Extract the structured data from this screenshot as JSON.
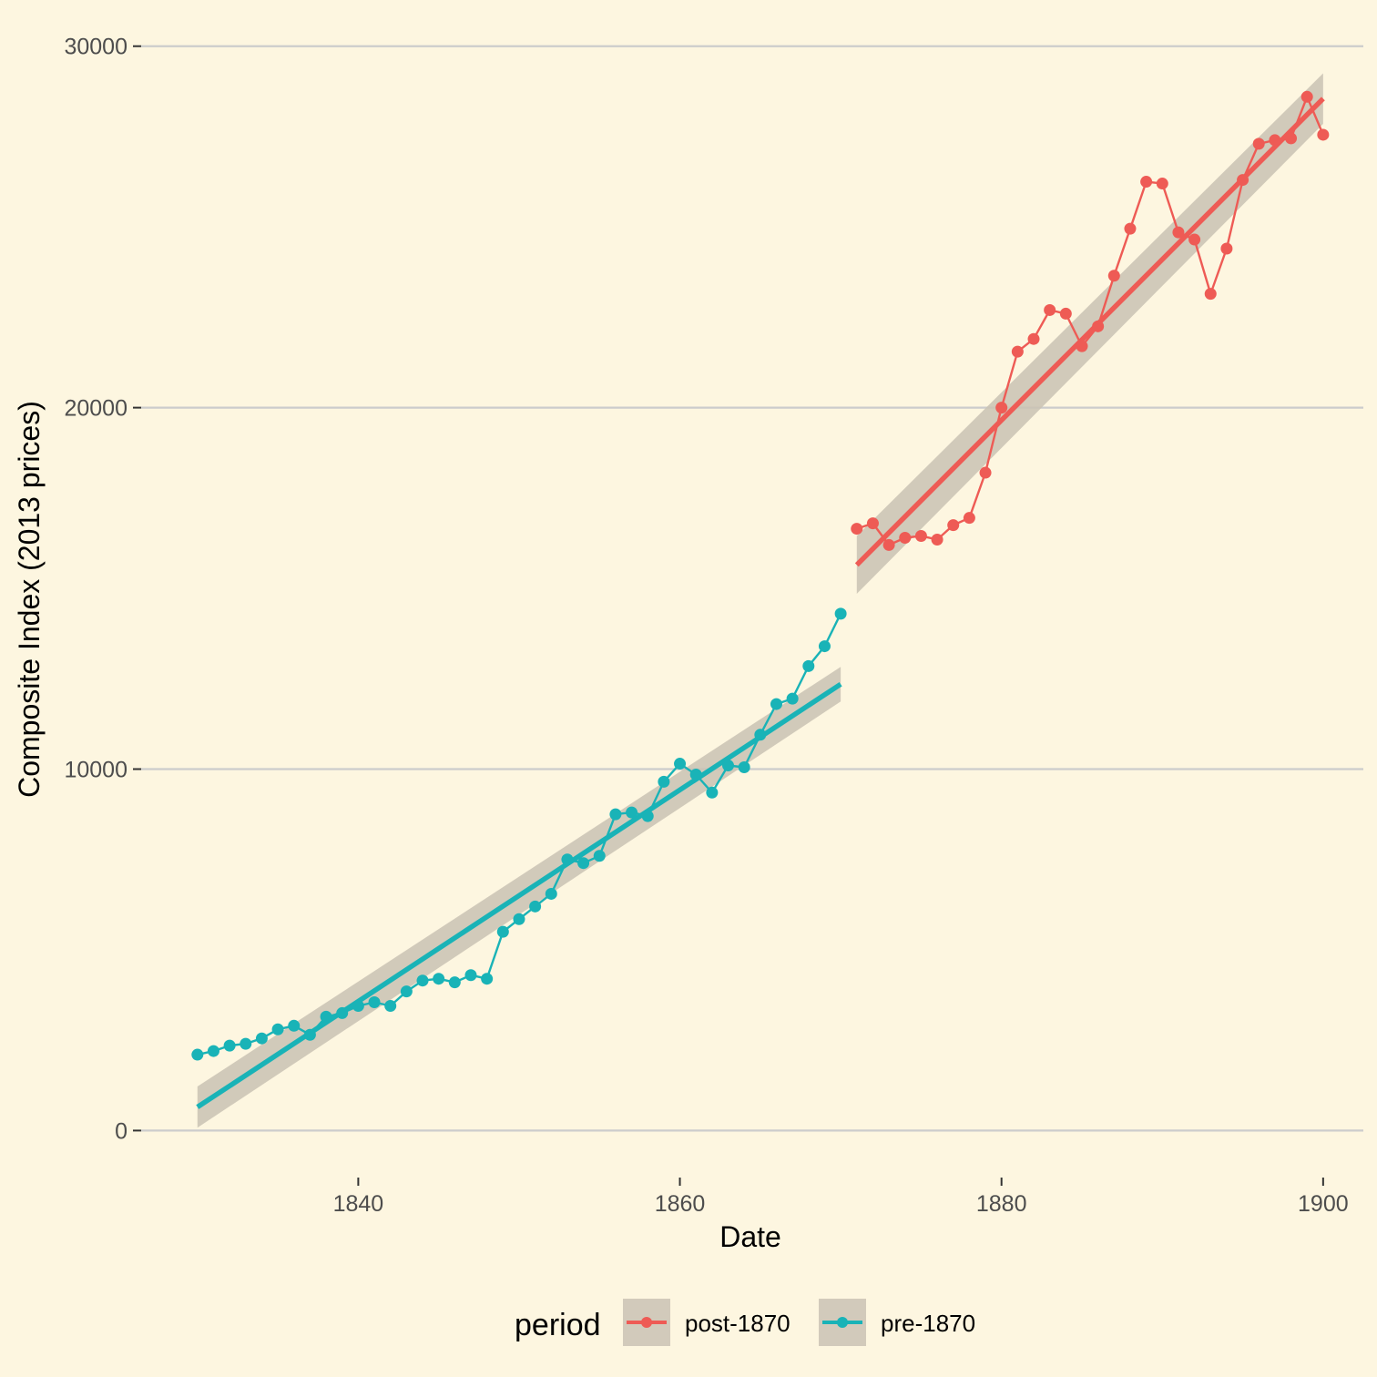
{
  "chart_data": {
    "type": "line",
    "title": "",
    "xlabel": "Date",
    "ylabel": "Composite Index (2013 prices)",
    "xlim": [
      1826.5,
      1902.5
    ],
    "ylim": [
      -1300,
      30900
    ],
    "x_ticks": [
      1840,
      1860,
      1880,
      1900
    ],
    "y_ticks": [
      0,
      10000,
      20000,
      30000
    ],
    "x_tick_labels": [
      "1840",
      "1860",
      "1880",
      "1900"
    ],
    "y_tick_labels": [
      "0",
      "10000",
      "20000",
      "30000"
    ],
    "grid": "horizontal major",
    "background": "#fdf6e0",
    "legend": {
      "title": "period",
      "position": "bottom",
      "entries": [
        "post-1870",
        "pre-1870"
      ]
    },
    "series": [
      {
        "name": "pre-1870",
        "color": "#19b3b7",
        "x": [
          1830,
          1831,
          1832,
          1833,
          1834,
          1835,
          1836,
          1837,
          1838,
          1839,
          1840,
          1841,
          1842,
          1843,
          1844,
          1845,
          1846,
          1847,
          1848,
          1849,
          1850,
          1851,
          1852,
          1853,
          1854,
          1855,
          1856,
          1857,
          1858,
          1859,
          1860,
          1861,
          1862,
          1863,
          1864,
          1865,
          1866,
          1867,
          1868,
          1869,
          1870
        ],
        "y": [
          2100,
          2200,
          2350,
          2400,
          2550,
          2800,
          2900,
          2650,
          3150,
          3250,
          3450,
          3550,
          3450,
          3850,
          4150,
          4200,
          4100,
          4300,
          4200,
          5500,
          5850,
          6200,
          6550,
          7500,
          7400,
          7600,
          8750,
          8800,
          8700,
          9650,
          10150,
          9850,
          9350,
          10100,
          10050,
          10950,
          11800,
          11950,
          12850,
          13400,
          14300
        ],
        "trend": {
          "x": [
            1830,
            1870
          ],
          "y": [
            650,
            12350
          ],
          "ci_lower": [
            80,
            11870
          ],
          "ci_upper": [
            1220,
            12830
          ]
        }
      },
      {
        "name": "post-1870",
        "color": "#ee5b55",
        "x": [
          1871,
          1872,
          1873,
          1874,
          1875,
          1876,
          1877,
          1878,
          1879,
          1880,
          1881,
          1882,
          1883,
          1884,
          1885,
          1886,
          1887,
          1888,
          1889,
          1890,
          1891,
          1892,
          1893,
          1894,
          1895,
          1896,
          1897,
          1898,
          1899,
          1900
        ],
        "y": [
          16650,
          16800,
          16200,
          16400,
          16450,
          16350,
          16750,
          16950,
          18200,
          20000,
          21550,
          21900,
          22700,
          22600,
          21700,
          22250,
          23650,
          24950,
          26250,
          26200,
          24850,
          24650,
          23150,
          24400,
          26300,
          27300,
          27400,
          27450,
          28600,
          27550
        ],
        "trend": {
          "x": [
            1871,
            1900
          ],
          "y": [
            15650,
            28550
          ],
          "ci_lower": [
            14850,
            27850
          ],
          "ci_upper": [
            16450,
            29250
          ]
        }
      }
    ]
  }
}
